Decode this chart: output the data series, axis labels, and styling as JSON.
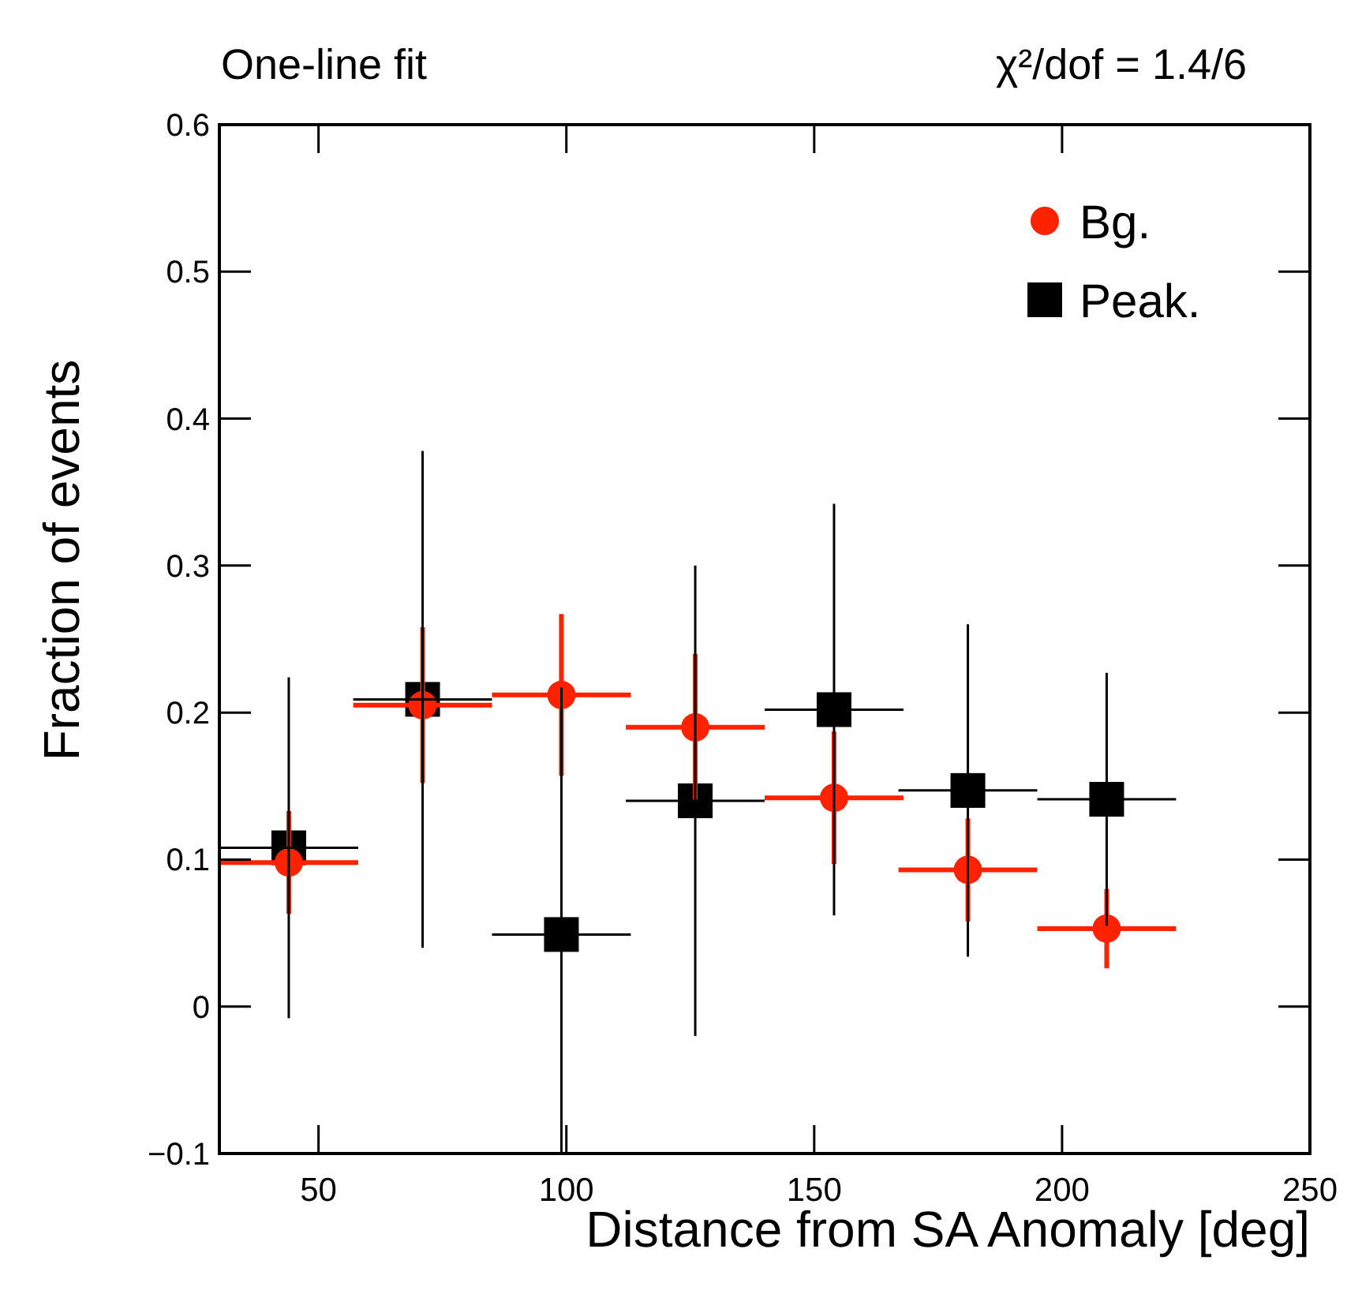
{
  "chart_data": {
    "type": "scatter",
    "title": "One-line fit",
    "subtitle": "χ²/dof = 1.4/6",
    "xlabel": "Distance from SA Anomaly [deg]",
    "ylabel": "Fraction of events",
    "x": [
      44,
      71,
      99,
      126,
      154,
      181,
      209
    ],
    "series": [
      {
        "name": "Bg.",
        "color": "#ff2200",
        "marker": "circle",
        "values": [
          0.098,
          0.205,
          0.212,
          0.19,
          0.142,
          0.093,
          0.053
        ],
        "errors": [
          0.035,
          0.053,
          0.055,
          0.05,
          0.045,
          0.035,
          0.027
        ],
        "xerrors": [
          14,
          14,
          14,
          14,
          14,
          14,
          14
        ]
      },
      {
        "name": "Peak.",
        "color": "#000000",
        "marker": "square",
        "values": [
          0.108,
          0.209,
          0.049,
          0.14,
          0.202,
          0.147,
          0.141
        ],
        "errors": [
          0.116,
          0.169,
          [
            -0.1,
            0.217
          ],
          0.16,
          0.14,
          0.113,
          0.086
        ],
        "xerrors": [
          14,
          14,
          14,
          14,
          14,
          14,
          14
        ]
      }
    ],
    "xlim": [
      30,
      250
    ],
    "xticks": [
      50,
      100,
      150,
      200,
      250
    ],
    "ylim": [
      -0.1,
      0.6
    ],
    "yticks": [
      -0.1,
      0,
      0.1,
      0.2,
      0.3,
      0.4,
      0.5,
      0.6
    ],
    "grid": false,
    "legend": "top right"
  }
}
